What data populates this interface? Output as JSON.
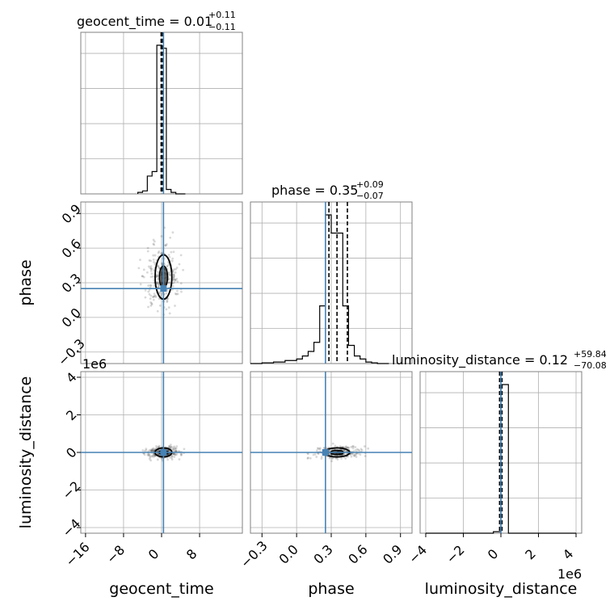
{
  "chart_data": {
    "type": "corner",
    "truth_color": "#4682b4",
    "grid": true,
    "parameters": [
      "geocent_time",
      "phase",
      "luminosity_distance"
    ],
    "truths": {
      "geocent_time": 0.4,
      "phase": 0.25,
      "luminosity_distance": 0
    },
    "titles": [
      {
        "param": "geocent_time",
        "main": "geocent_time = 0.01",
        "sup": "+0.11",
        "sub": "−0.11"
      },
      {
        "param": "phase",
        "main": "phase = 0.35",
        "sup": "+0.09",
        "sub": "−0.07"
      },
      {
        "param": "luminosity_distance",
        "main": "luminosity_distance = 0.12",
        "sup": "+59.84",
        "sub": "−70.08"
      }
    ],
    "axis_labels": {
      "x": [
        "geocent_time",
        "phase",
        "luminosity_distance"
      ],
      "y": [
        "phase",
        "luminosity_distance"
      ]
    },
    "ticks": {
      "geocent_time": [
        "−16",
        "−8",
        "0",
        "8"
      ],
      "phase": [
        "−0.3",
        "0.0",
        "0.3",
        "0.6",
        "0.9"
      ],
      "luminosity_distance": [
        "−4",
        "−2",
        "0",
        "2",
        "4"
      ]
    },
    "tick_values": {
      "geocent_time": [
        -16,
        -8,
        0,
        8
      ],
      "phase": [
        -0.3,
        0.0,
        0.3,
        0.6,
        0.9
      ],
      "luminosity_distance": [
        -4,
        -2,
        0,
        2,
        4
      ]
    },
    "ranges": {
      "geocent_time": [
        -17,
        17
      ],
      "phase": [
        -0.4,
        1.0
      ],
      "luminosity_distance": [
        -4.3,
        4.3
      ]
    },
    "offset_labels": {
      "luminosity_distance_y": "1e6",
      "luminosity_distance_x": "1e6"
    },
    "quantile_lines": {
      "geocent_time": [
        -0.1,
        0.01,
        0.12
      ],
      "phase": [
        0.28,
        0.35,
        0.44
      ],
      "luminosity_distance": [
        -0.07,
        0.0,
        0.06
      ]
    },
    "histograms": {
      "geocent_time": {
        "edges": [
          -5,
          -4,
          -3,
          -2,
          -1,
          0,
          1,
          2,
          3,
          4,
          5
        ],
        "counts": [
          0.01,
          0.02,
          0.12,
          0.15,
          1.0,
          0.98,
          0.03,
          0.01,
          0.0,
          0.0
        ]
      },
      "phase": {
        "edges": [
          -0.4,
          -0.3,
          -0.2,
          -0.1,
          0.0,
          0.05,
          0.1,
          0.15,
          0.2,
          0.25,
          0.3,
          0.35,
          0.4,
          0.45,
          0.5,
          0.55,
          0.6,
          0.65,
          0.7,
          0.8
        ],
        "counts": [
          0.0,
          0.005,
          0.01,
          0.02,
          0.03,
          0.05,
          0.08,
          0.14,
          0.38,
          0.98,
          0.86,
          0.86,
          0.38,
          0.12,
          0.05,
          0.03,
          0.01,
          0.005,
          0.0
        ]
      },
      "luminosity_distance": {
        "edges": [
          -4,
          -0.4,
          0,
          0.4,
          4
        ],
        "counts": [
          0.0,
          0.01,
          1.0,
          0.0
        ]
      }
    }
  }
}
